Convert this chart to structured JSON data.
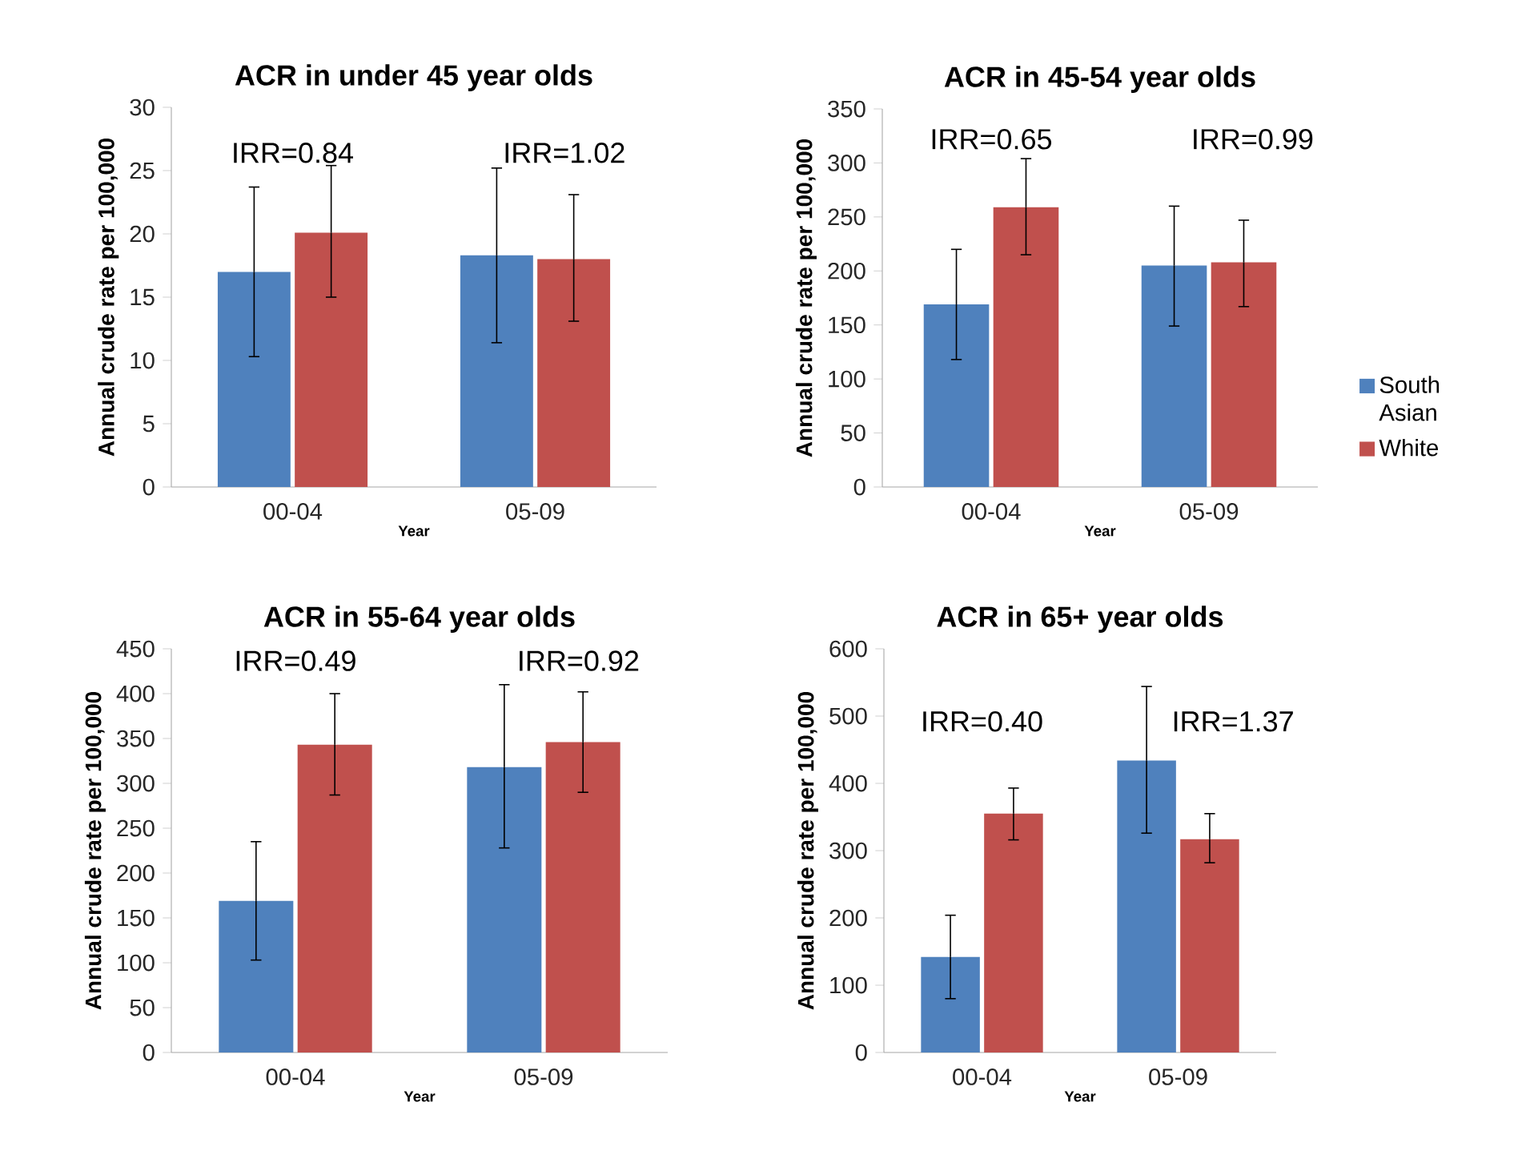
{
  "chart_data": [
    {
      "type": "bar",
      "title": "ACR in under 45 year olds",
      "xlabel": "Year",
      "ylabel": "Annual crude rate per 100,000",
      "categories": [
        "00-04",
        "05-09"
      ],
      "series": [
        {
          "color": "#4f81bd",
          "values": [
            17.0,
            18.3
          ],
          "errors": [
            [
              10.3,
              23.7
            ],
            [
              11.4,
              25.2
            ]
          ]
        },
        {
          "color": "#c0504d",
          "values": [
            20.1,
            18.0
          ],
          "errors": [
            [
              15.0,
              25.4
            ],
            [
              13.1,
              23.1
            ]
          ]
        }
      ],
      "ylim": [
        0,
        30
      ],
      "yticks": [
        0,
        5,
        10,
        15,
        20,
        25,
        30
      ],
      "legend": false,
      "annotations": [
        "IRR=0.84",
        "IRR=1.02"
      ]
    },
    {
      "type": "bar",
      "title": "ACR in 45-54 year olds",
      "xlabel": "Year",
      "ylabel": "Annual crude rate per 100,000",
      "categories": [
        "00-04",
        "05-09"
      ],
      "series": [
        {
          "name": "South Asian",
          "color": "#4f81bd",
          "values": [
            169,
            205
          ],
          "errors": [
            [
              118,
              220
            ],
            [
              149,
              260
            ]
          ]
        },
        {
          "name": "White",
          "color": "#c0504d",
          "values": [
            259,
            208
          ],
          "errors": [
            [
              215,
              304
            ],
            [
              167,
              247
            ]
          ]
        }
      ],
      "ylim": [
        0,
        350
      ],
      "yticks": [
        0,
        50,
        100,
        150,
        200,
        250,
        300,
        350
      ],
      "legend": "right",
      "annotations": [
        "IRR=0.65",
        "IRR=0.99"
      ]
    },
    {
      "type": "bar",
      "title": "ACR in 55-64 year olds",
      "xlabel": "Year",
      "ylabel": "Annual crude rate per 100,000",
      "categories": [
        "00-04",
        "05-09"
      ],
      "series": [
        {
          "color": "#4f81bd",
          "values": [
            169,
            318
          ],
          "errors": [
            [
              103,
              235
            ],
            [
              228,
              410
            ]
          ]
        },
        {
          "color": "#c0504d",
          "values": [
            343,
            346
          ],
          "errors": [
            [
              287,
              400
            ],
            [
              290,
              402
            ]
          ]
        }
      ],
      "ylim": [
        0,
        450
      ],
      "yticks": [
        0,
        50,
        100,
        150,
        200,
        250,
        300,
        350,
        400,
        450
      ],
      "legend": false,
      "annotations": [
        "IRR=0.49",
        "IRR=0.92"
      ]
    },
    {
      "type": "bar",
      "title": "ACR in 65+ year olds",
      "xlabel": "Year",
      "ylabel": "Annual crude rate per 100,000",
      "categories": [
        "00-04",
        "05-09"
      ],
      "series": [
        {
          "color": "#4f81bd",
          "values": [
            142,
            434
          ],
          "errors": [
            [
              80,
              204
            ],
            [
              326,
              544
            ]
          ]
        },
        {
          "color": "#c0504d",
          "values": [
            355,
            317
          ],
          "errors": [
            [
              316,
              393
            ],
            [
              282,
              355
            ]
          ]
        }
      ],
      "ylim": [
        0,
        600
      ],
      "yticks": [
        0,
        100,
        200,
        300,
        400,
        500,
        600
      ],
      "legend": false,
      "annotations": [
        "IRR=0.40",
        "IRR=1.37"
      ]
    }
  ]
}
